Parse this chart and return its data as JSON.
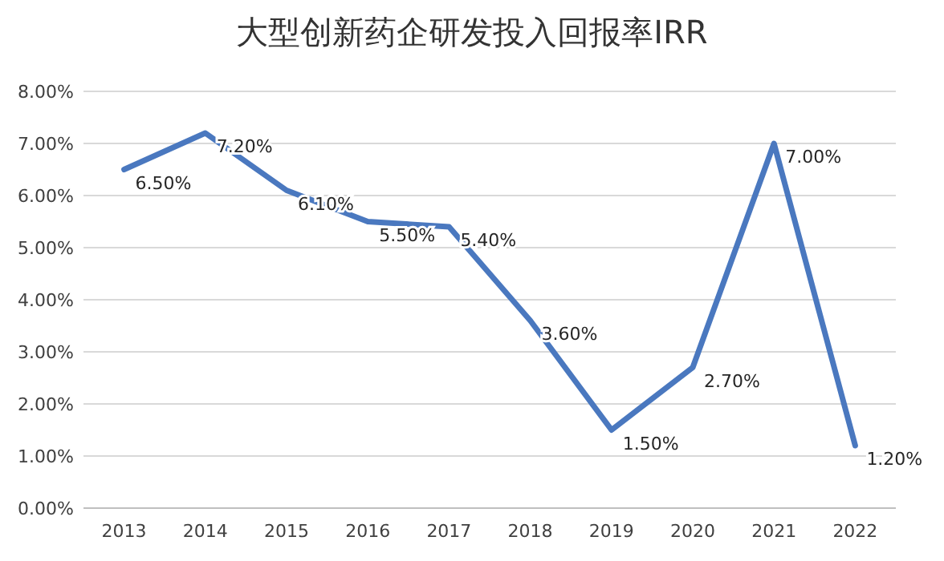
{
  "chart_data": {
    "type": "line",
    "title": "大型创新药企研发投入回报率IRR",
    "categories": [
      "2013",
      "2014",
      "2015",
      "2016",
      "2017",
      "2018",
      "2019",
      "2020",
      "2021",
      "2022"
    ],
    "series": [
      {
        "color": "#4a78bf",
        "values": [
          6.5,
          7.2,
          6.1,
          5.5,
          5.4,
          3.6,
          1.5,
          2.7,
          7.0,
          1.2
        ],
        "value_labels": [
          "6.50%",
          "7.20%",
          "6.10%",
          "5.50%",
          "5.40%",
          "3.60%",
          "1.50%",
          "2.70%",
          "7.00%",
          "1.20%"
        ]
      }
    ],
    "ylim": [
      0,
      8
    ],
    "yticks": [
      {
        "value": 0,
        "label": "0.00%"
      },
      {
        "value": 1,
        "label": "1.00%"
      },
      {
        "value": 2,
        "label": "2.00%"
      },
      {
        "value": 3,
        "label": "3.00%"
      },
      {
        "value": 4,
        "label": "4.00%"
      },
      {
        "value": 5,
        "label": "5.00%"
      },
      {
        "value": 6,
        "label": "6.00%"
      },
      {
        "value": 7,
        "label": "7.00%"
      },
      {
        "value": 8,
        "label": "8.00%"
      }
    ],
    "grid": "y",
    "marker": "none",
    "line_style": "solid"
  }
}
